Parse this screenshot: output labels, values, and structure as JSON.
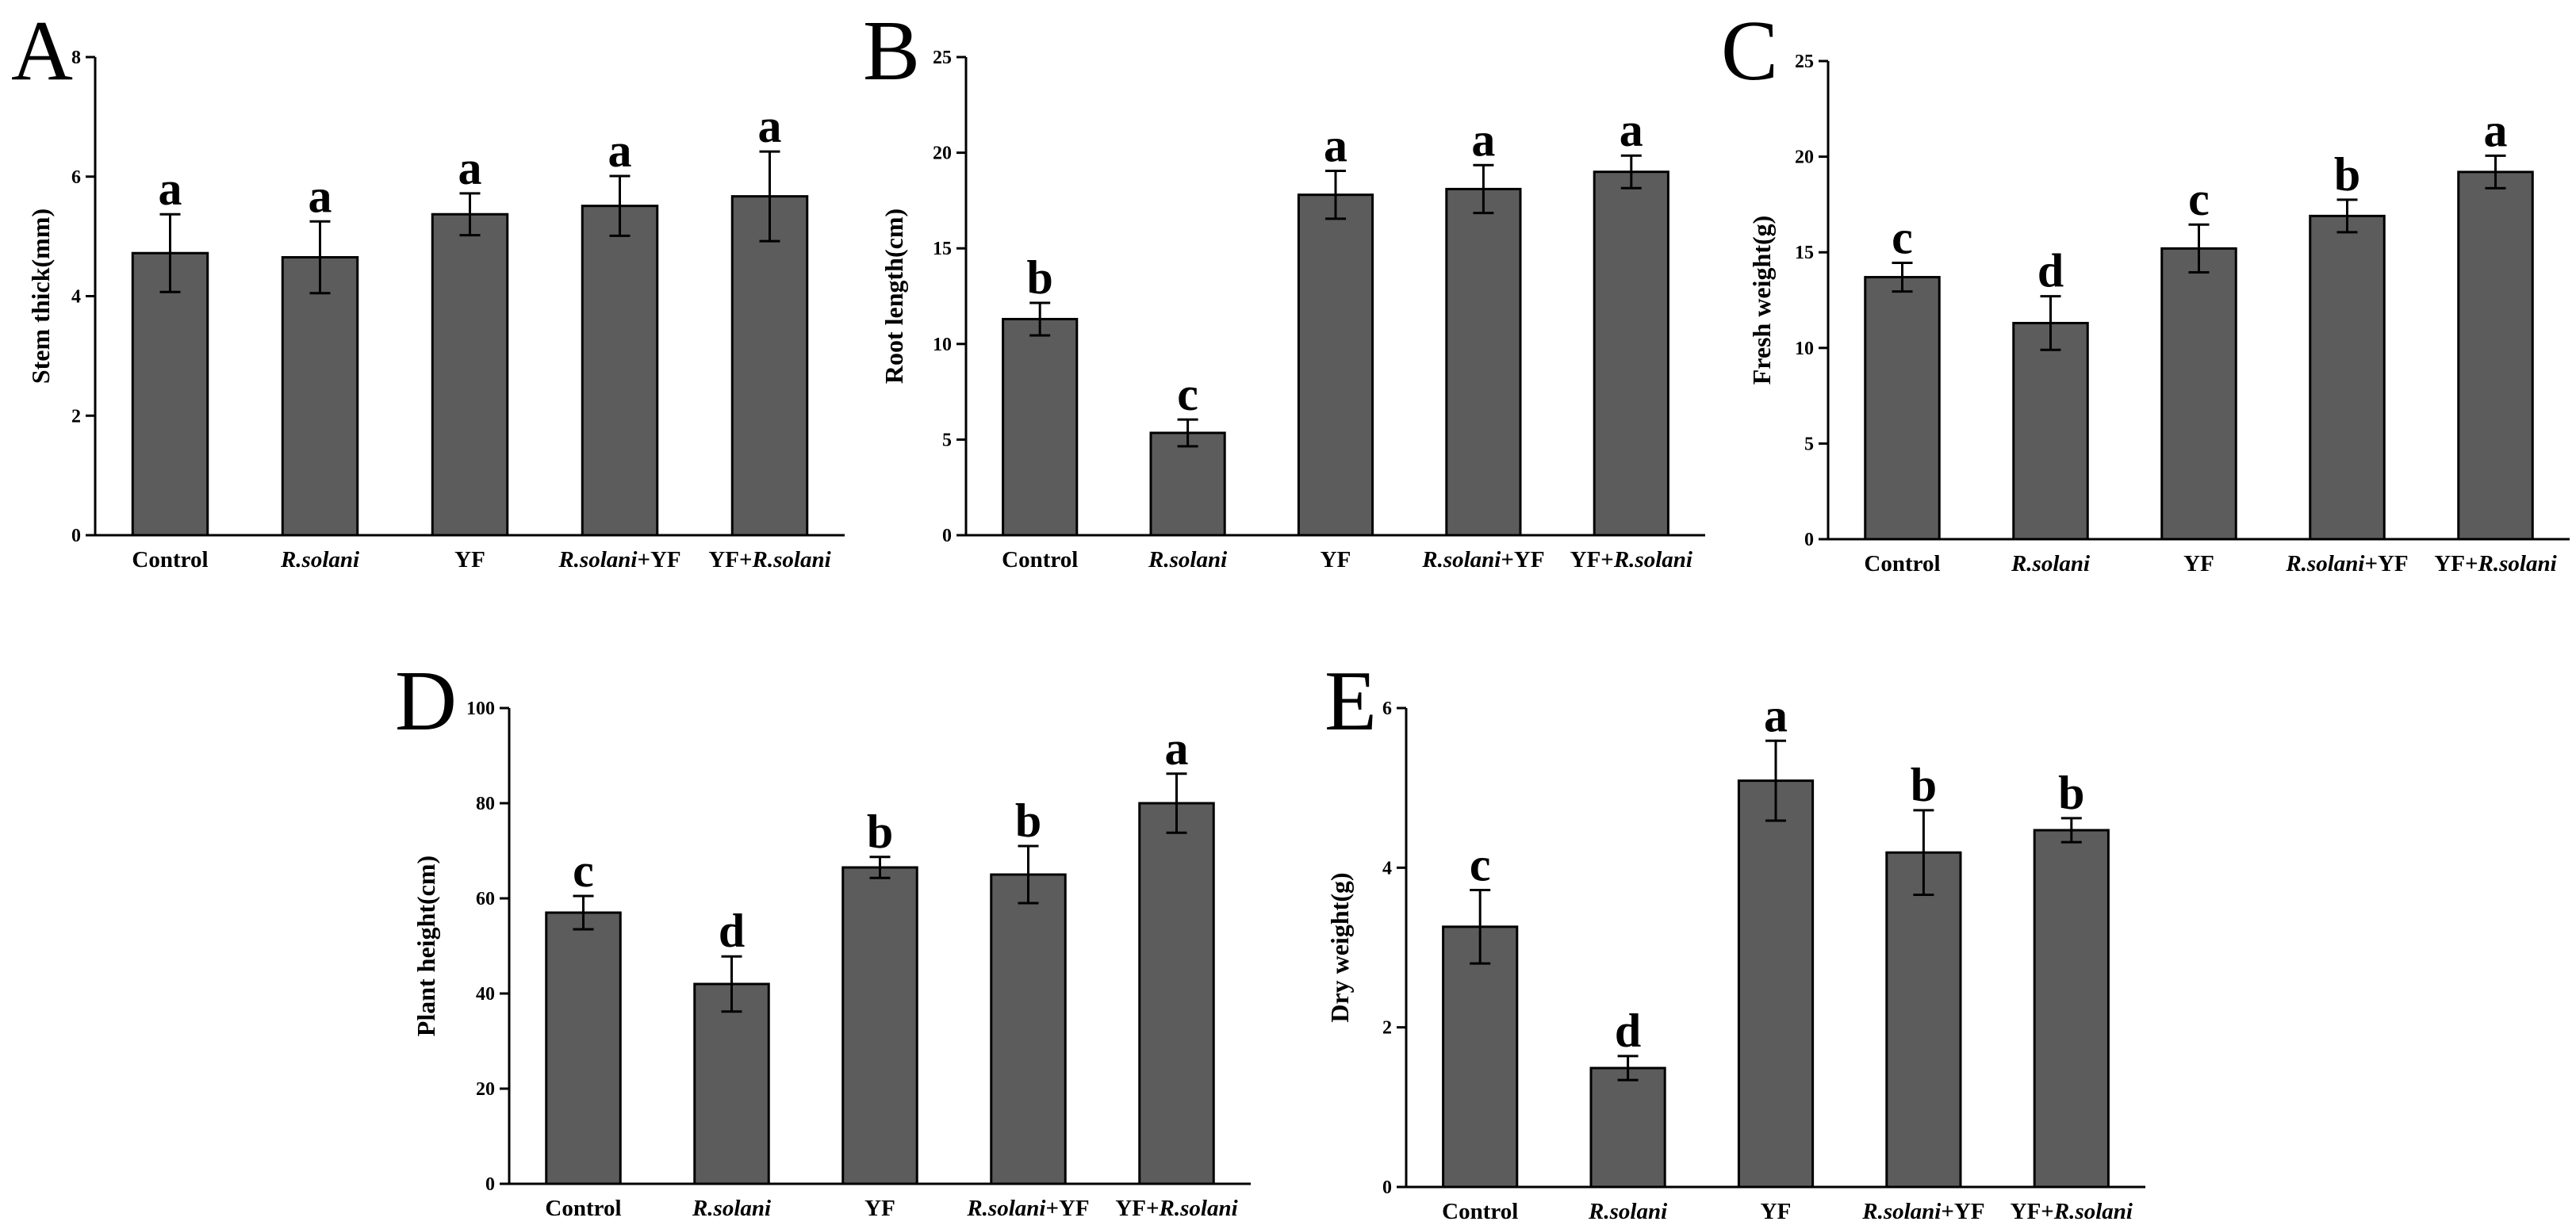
{
  "chart_data": [
    {
      "type": "bar",
      "panel": "A",
      "ylabel": "Stem thick(mm)",
      "ylim": [
        0,
        8
      ],
      "yticks": [
        0,
        2,
        4,
        6,
        8
      ],
      "categories": [
        {
          "parts": [
            {
              "text": "Control",
              "italic": false
            }
          ]
        },
        {
          "parts": [
            {
              "text": "R.solani",
              "italic": true
            }
          ]
        },
        {
          "parts": [
            {
              "text": "YF",
              "italic": false
            }
          ]
        },
        {
          "parts": [
            {
              "text": "R.solani",
              "italic": true
            },
            {
              "text": "+YF",
              "italic": false
            }
          ]
        },
        {
          "parts": [
            {
              "text": "YF+",
              "italic": false
            },
            {
              "text": "R.solani",
              "italic": true
            }
          ]
        }
      ],
      "values": [
        4.72,
        4.65,
        5.37,
        5.51,
        5.67
      ],
      "errors": [
        0.65,
        0.6,
        0.35,
        0.5,
        0.75
      ],
      "letters": [
        "a",
        "a",
        "a",
        "a",
        "a"
      ],
      "bar_color": "#5c5c5c"
    },
    {
      "type": "bar",
      "panel": "B",
      "ylabel": "Root length(cm)",
      "ylim": [
        0,
        25
      ],
      "yticks": [
        0,
        5,
        10,
        15,
        20,
        25
      ],
      "categories": [
        {
          "parts": [
            {
              "text": "Control",
              "italic": false
            }
          ]
        },
        {
          "parts": [
            {
              "text": "R.solani",
              "italic": true
            }
          ]
        },
        {
          "parts": [
            {
              "text": "YF",
              "italic": false
            }
          ]
        },
        {
          "parts": [
            {
              "text": "R.solani",
              "italic": true
            },
            {
              "text": "+YF",
              "italic": false
            }
          ]
        },
        {
          "parts": [
            {
              "text": "YF+",
              "italic": false
            },
            {
              "text": "R.solani",
              "italic": true
            }
          ]
        }
      ],
      "values": [
        11.3,
        5.35,
        17.8,
        18.1,
        19.0
      ],
      "errors": [
        0.85,
        0.7,
        1.25,
        1.25,
        0.85
      ],
      "letters": [
        "b",
        "c",
        "a",
        "a",
        "a"
      ],
      "bar_color": "#5c5c5c"
    },
    {
      "type": "bar",
      "panel": "C",
      "ylabel": "Fresh weight(g)",
      "ylim": [
        0,
        25
      ],
      "yticks": [
        0,
        5,
        10,
        15,
        20,
        25
      ],
      "categories": [
        {
          "parts": [
            {
              "text": "Control",
              "italic": false
            }
          ]
        },
        {
          "parts": [
            {
              "text": "R.solani",
              "italic": true
            }
          ]
        },
        {
          "parts": [
            {
              "text": "YF",
              "italic": false
            }
          ]
        },
        {
          "parts": [
            {
              "text": "R.solani",
              "italic": true
            },
            {
              "text": "+YF",
              "italic": false
            }
          ]
        },
        {
          "parts": [
            {
              "text": "YF+",
              "italic": false
            },
            {
              "text": "R.solani",
              "italic": true
            }
          ]
        }
      ],
      "values": [
        13.7,
        11.3,
        15.2,
        16.9,
        19.2
      ],
      "errors": [
        0.75,
        1.4,
        1.25,
        0.85,
        0.85
      ],
      "letters": [
        "c",
        "d",
        "c",
        "b",
        "a"
      ],
      "bar_color": "#5c5c5c"
    },
    {
      "type": "bar",
      "panel": "D",
      "ylabel": "Plant height(cm)",
      "ylim": [
        0,
        100
      ],
      "yticks": [
        0,
        20,
        40,
        60,
        80,
        100
      ],
      "categories": [
        {
          "parts": [
            {
              "text": "Control",
              "italic": false
            }
          ]
        },
        {
          "parts": [
            {
              "text": "R.solani",
              "italic": true
            }
          ]
        },
        {
          "parts": [
            {
              "text": "YF",
              "italic": false
            }
          ]
        },
        {
          "parts": [
            {
              "text": "R.solani",
              "italic": true
            },
            {
              "text": "+YF",
              "italic": false
            }
          ]
        },
        {
          "parts": [
            {
              "text": "YF+",
              "italic": false
            },
            {
              "text": "R.solani",
              "italic": true
            }
          ]
        }
      ],
      "values": [
        57.0,
        42.0,
        66.5,
        65.0,
        80.0
      ],
      "errors": [
        3.5,
        5.8,
        2.2,
        6.0,
        6.2
      ],
      "letters": [
        "c",
        "d",
        "b",
        "b",
        "a"
      ],
      "bar_color": "#5c5c5c"
    },
    {
      "type": "bar",
      "panel": "E",
      "ylabel": "Dry weight(g)",
      "ylim": [
        0,
        6
      ],
      "yticks": [
        0,
        2,
        4,
        6
      ],
      "categories": [
        {
          "parts": [
            {
              "text": "Control",
              "italic": false
            }
          ]
        },
        {
          "parts": [
            {
              "text": "R.solani",
              "italic": true
            }
          ]
        },
        {
          "parts": [
            {
              "text": "YF",
              "italic": false
            }
          ]
        },
        {
          "parts": [
            {
              "text": "R.solani",
              "italic": true
            },
            {
              "text": "+YF",
              "italic": false
            }
          ]
        },
        {
          "parts": [
            {
              "text": "YF+",
              "italic": false
            },
            {
              "text": "R.solani",
              "italic": true
            }
          ]
        }
      ],
      "values": [
        3.26,
        1.49,
        5.09,
        4.19,
        4.47
      ],
      "errors": [
        0.46,
        0.15,
        0.5,
        0.53,
        0.15
      ],
      "letters": [
        "c",
        "d",
        "a",
        "b",
        "b"
      ],
      "bar_color": "#5c5c5c"
    }
  ]
}
